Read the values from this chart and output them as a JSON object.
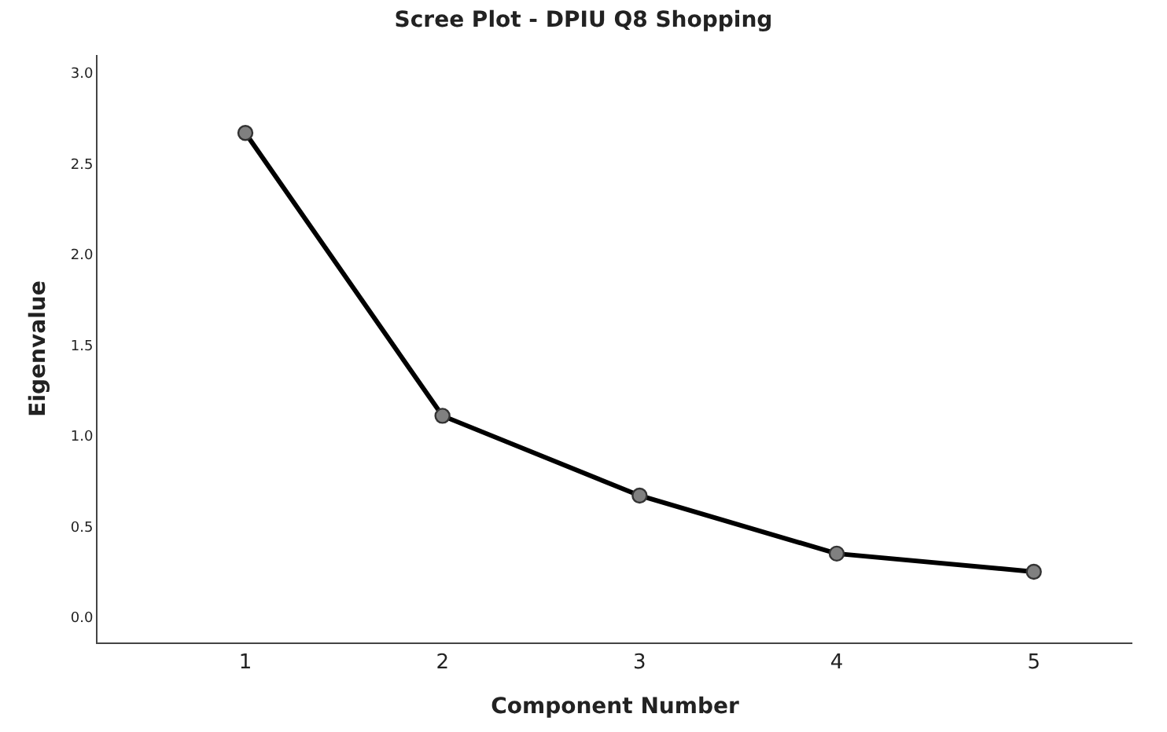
{
  "chart_data": {
    "type": "line",
    "title": "Scree Plot - DPIU Q8 Shopping",
    "xlabel": "Component Number",
    "ylabel": "Eigenvalue",
    "x": [
      1,
      2,
      3,
      4,
      5
    ],
    "series": [
      {
        "color": "#000000",
        "values": [
          2.67,
          1.11,
          0.67,
          0.35,
          0.25
        ]
      }
    ],
    "xlim": [
      0.25,
      5.5
    ],
    "xticks": [
      1,
      2,
      3,
      4,
      5
    ],
    "ylim": [
      -0.14,
      3.1
    ],
    "yticks": [
      {
        "value": 0,
        "label": "0.0"
      },
      {
        "value": 0.5,
        "label": "0.5"
      },
      {
        "value": 1,
        "label": "1.0"
      },
      {
        "value": 1.5,
        "label": "1.5"
      },
      {
        "value": 2,
        "label": "2.0"
      },
      {
        "value": 2.5,
        "label": "2.5"
      },
      {
        "value": 3,
        "label": "3.0"
      }
    ],
    "legend": false,
    "marker": "circle",
    "line_style": "solid"
  }
}
